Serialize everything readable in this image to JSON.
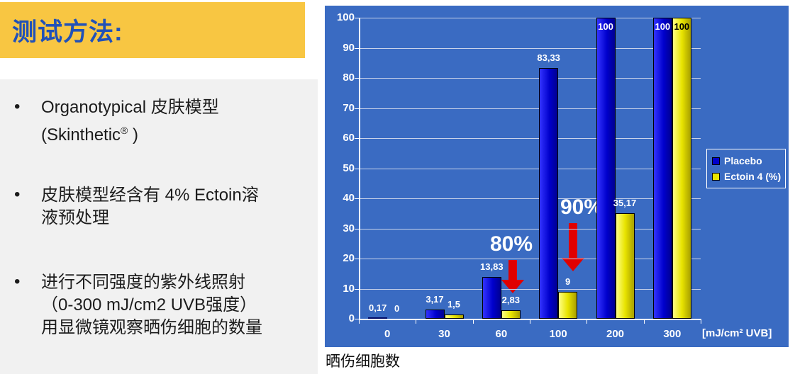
{
  "left_panel": {
    "title": "测试方法:",
    "bullet_char": "•",
    "bullets": [
      {
        "lines": [
          "Organotypical 皮肤模型",
          "(Skinthetic® )"
        ]
      },
      {
        "lines": [
          "皮肤模型经含有 4% Ectoin溶",
          "液预处理"
        ]
      },
      {
        "lines": [
          "进行不同强度的紫外线照射",
          "（0-300 mJ/cm2 UVB强度）",
          "用显微镜观察晒伤细胞的数量"
        ]
      }
    ]
  },
  "chart_data": {
    "type": "bar",
    "title": "晒伤细胞数",
    "categories": [
      "0",
      "30",
      "60",
      "100",
      "200",
      "300"
    ],
    "series": [
      {
        "name": "Placebo",
        "color": "#0000CC",
        "values": [
          0.17,
          3.17,
          13.83,
          83.33,
          100,
          100
        ],
        "labels": [
          "0,17",
          "3,17",
          "13,83",
          "83,33",
          "100",
          "100"
        ],
        "label_color": "#FFFFFF",
        "inside_label_color": "#FFFFFF"
      },
      {
        "name": "Ectoin 4 (%)",
        "color": "#E8E400",
        "values": [
          0,
          1.5,
          2.83,
          9,
          35.17,
          100
        ],
        "labels": [
          "0",
          "1,5",
          "2,83",
          "9",
          "35,17",
          "100"
        ],
        "label_color": "#FFFFFF",
        "inside_label_color": "#000000"
      }
    ],
    "ylim": [
      0,
      100
    ],
    "yticks": [
      0,
      10,
      20,
      30,
      40,
      50,
      60,
      70,
      80,
      90,
      100
    ],
    "xlabel": "[mJ/cm² UVB]",
    "grid": "horizontal",
    "legend_position": "middle-right",
    "annotations": [
      {
        "text": "80%",
        "over_category": "60"
      },
      {
        "text": "90%",
        "over_category": "100"
      }
    ],
    "colors": {
      "background": "#3A6BC2",
      "gridline": "#C9D3EA",
      "axis": "#FFFFFF",
      "arrow": "#E00000"
    }
  }
}
